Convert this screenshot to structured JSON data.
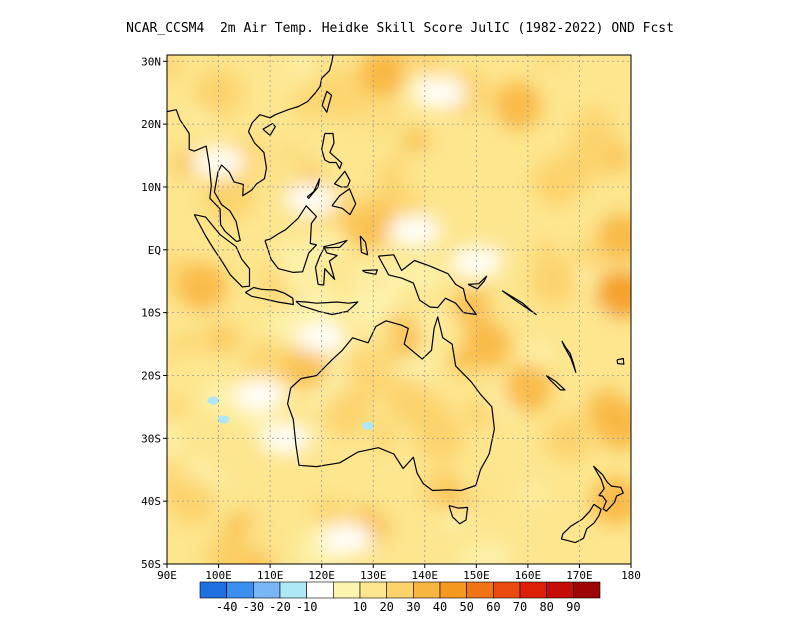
{
  "title": "NCAR_CCSM4  2m Air Temp. Heidke Skill Score JulIC (1982-2022) OND Fcst",
  "map": {
    "lon_range": [
      90,
      180
    ],
    "lat_range": [
      -50,
      31
    ],
    "lon_ticks": [
      {
        "value": 90,
        "label": "90E"
      },
      {
        "value": 100,
        "label": "100E"
      },
      {
        "value": 110,
        "label": "110E"
      },
      {
        "value": 120,
        "label": "120E"
      },
      {
        "value": 130,
        "label": "130E"
      },
      {
        "value": 140,
        "label": "140E"
      },
      {
        "value": 150,
        "label": "150E"
      },
      {
        "value": 160,
        "label": "160E"
      },
      {
        "value": 170,
        "label": "170E"
      },
      {
        "value": 180,
        "label": "180"
      }
    ],
    "lat_ticks": [
      {
        "value": 30,
        "label": "30N"
      },
      {
        "value": 20,
        "label": "20N"
      },
      {
        "value": 10,
        "label": "10N"
      },
      {
        "value": 0,
        "label": "EQ"
      },
      {
        "value": -10,
        "label": "10S"
      },
      {
        "value": -20,
        "label": "20S"
      },
      {
        "value": -30,
        "label": "30S"
      },
      {
        "value": -40,
        "label": "40S"
      },
      {
        "value": -50,
        "label": "50S"
      }
    ],
    "grid": true
  },
  "colorbar": {
    "colors": [
      "#1e6fe0",
      "#3a8ff0",
      "#78b6f5",
      "#aee8f7",
      "#ffffff",
      "#fdf4b0",
      "#fde68e",
      "#fcd26a",
      "#f8b640",
      "#f4981e",
      "#f07414",
      "#ea4a0e",
      "#dc2008",
      "#c60c06",
      "#9e0606"
    ],
    "labels": [
      "-40",
      "-30",
      "-20",
      "-10",
      "10",
      "20",
      "30",
      "40",
      "50",
      "60",
      "70",
      "80",
      "90"
    ]
  },
  "hotspots": [
    {
      "lon": 97,
      "lat": -6,
      "level": 40
    },
    {
      "lon": 100,
      "lat": 25,
      "level": 30
    },
    {
      "lon": 132,
      "lat": 28,
      "level": 40
    },
    {
      "lon": 148,
      "lat": 25,
      "level": 30
    },
    {
      "lon": 158,
      "lat": 23,
      "level": 40
    },
    {
      "lon": 172,
      "lat": 15,
      "level": 30
    },
    {
      "lon": 178,
      "lat": 2,
      "level": 40
    },
    {
      "lon": 178,
      "lat": -7,
      "level": 50
    },
    {
      "lon": 165,
      "lat": -5,
      "level": 30
    },
    {
      "lon": 152,
      "lat": -15,
      "level": 40
    },
    {
      "lon": 160,
      "lat": -22,
      "level": 40
    },
    {
      "lon": 168,
      "lat": -30,
      "level": 30
    },
    {
      "lon": 177,
      "lat": -40,
      "level": 40
    },
    {
      "lon": 178,
      "lat": -28,
      "level": 40
    },
    {
      "lon": 125,
      "lat": -26,
      "level": 30
    },
    {
      "lon": 137,
      "lat": -24,
      "level": 30
    },
    {
      "lon": 143,
      "lat": -30,
      "level": 30
    },
    {
      "lon": 95,
      "lat": -40,
      "level": 30
    },
    {
      "lon": 110,
      "lat": -45,
      "level": 20
    },
    {
      "lon": 135,
      "lat": -40,
      "level": 20
    },
    {
      "lon": 150,
      "lat": -36,
      "level": 20
    },
    {
      "lon": 112,
      "lat": 12,
      "level": 20
    },
    {
      "lon": 140,
      "lat": 12,
      "level": 20
    }
  ],
  "whitespots": [
    {
      "lon": 108,
      "lat": -23
    },
    {
      "lon": 120,
      "lat": -14
    },
    {
      "lon": 138,
      "lat": 3
    },
    {
      "lon": 150,
      "lat": -2
    },
    {
      "lon": 113,
      "lat": -30
    },
    {
      "lon": 125,
      "lat": -46
    },
    {
      "lon": 118,
      "lat": 8
    },
    {
      "lon": 100,
      "lat": 14
    },
    {
      "lon": 143,
      "lat": 25
    }
  ]
}
